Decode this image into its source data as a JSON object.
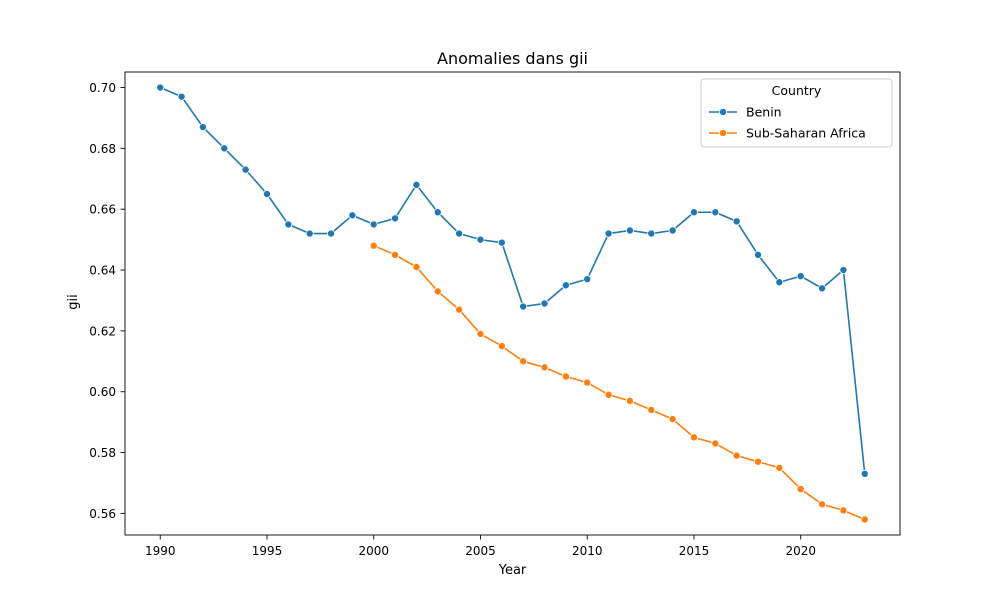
{
  "chart_data": {
    "type": "line",
    "title": "Anomalies dans gii",
    "xlabel": "Year",
    "ylabel": "gii",
    "xlim": [
      1988.35,
      2024.65
    ],
    "ylim": [
      0.5529,
      0.7051
    ],
    "x_ticks": [
      1990,
      1995,
      2000,
      2005,
      2010,
      2015,
      2020
    ],
    "y_ticks": [
      0.56,
      0.58,
      0.6,
      0.62,
      0.64,
      0.66,
      0.68,
      0.7
    ],
    "grid": false,
    "legend": {
      "title": "Country",
      "placement": "top-right"
    },
    "series": [
      {
        "name": "Benin",
        "color": "#1f77b4",
        "x": [
          1990,
          1991,
          1992,
          1993,
          1994,
          1995,
          1996,
          1997,
          1998,
          1999,
          2000,
          2001,
          2002,
          2003,
          2004,
          2005,
          2006,
          2007,
          2008,
          2009,
          2010,
          2011,
          2012,
          2013,
          2014,
          2015,
          2016,
          2017,
          2018,
          2019,
          2020,
          2021,
          2022,
          2023
        ],
        "values": [
          0.7,
          0.697,
          0.687,
          0.68,
          0.673,
          0.665,
          0.655,
          0.652,
          0.652,
          0.658,
          0.655,
          0.657,
          0.668,
          0.659,
          0.652,
          0.65,
          0.649,
          0.628,
          0.629,
          0.635,
          0.637,
          0.652,
          0.653,
          0.652,
          0.653,
          0.659,
          0.659,
          0.656,
          0.645,
          0.636,
          0.638,
          0.634,
          0.64,
          0.573
        ]
      },
      {
        "name": "Sub-Saharan Africa",
        "color": "#ff7f0e",
        "x": [
          2000,
          2001,
          2002,
          2003,
          2004,
          2005,
          2006,
          2007,
          2008,
          2009,
          2010,
          2011,
          2012,
          2013,
          2014,
          2015,
          2016,
          2017,
          2018,
          2019,
          2020,
          2021,
          2022,
          2023
        ],
        "values": [
          0.648,
          0.645,
          0.641,
          0.633,
          0.627,
          0.619,
          0.615,
          0.61,
          0.608,
          0.605,
          0.603,
          0.599,
          0.597,
          0.594,
          0.591,
          0.585,
          0.583,
          0.579,
          0.577,
          0.575,
          0.568,
          0.563,
          0.561,
          0.558
        ]
      }
    ]
  }
}
